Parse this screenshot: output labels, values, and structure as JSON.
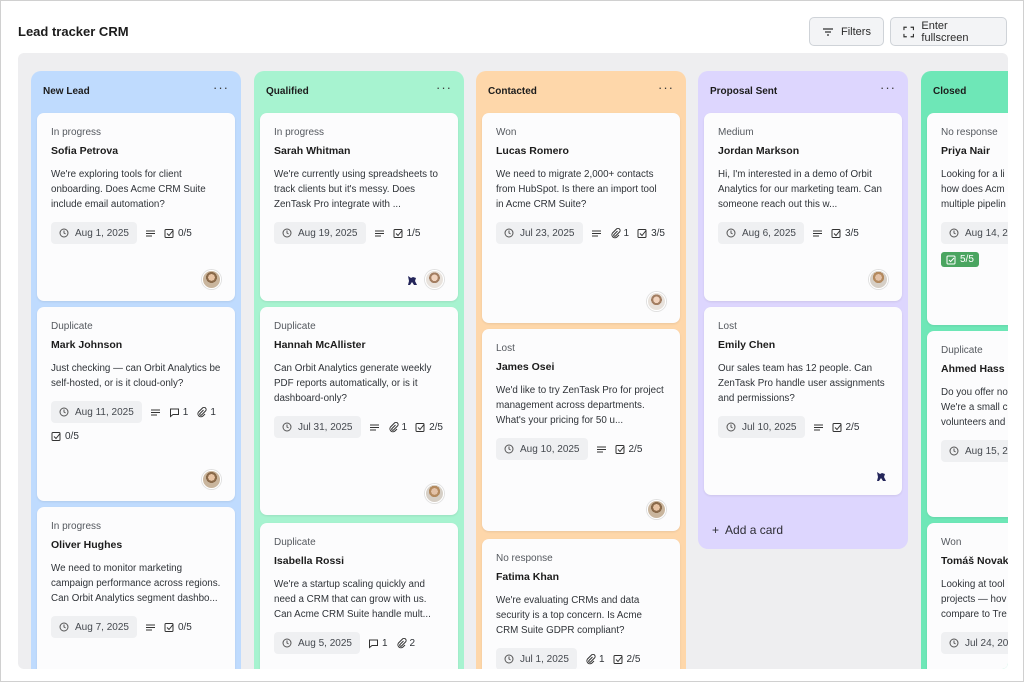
{
  "header": {
    "title": "Lead tracker CRM",
    "filters_label": "Filters",
    "fullscreen_label": "Enter fullscreen"
  },
  "colors": {
    "new_lead": "#bfdbfe",
    "qualified": "#a7f3d0",
    "contacted": "#fed7aa",
    "proposal_sent": "#ddd6fe",
    "closed": "#6ee7b7"
  },
  "columns": [
    {
      "title": "New Lead",
      "more": "···",
      "cards": [
        {
          "status": "In progress",
          "name": "Sofia Petrova",
          "desc": "We're exploring tools for client onboarding. Does Acme CRM Suite include email automation?",
          "date": "Aug 1, 2025",
          "checklist": "0/5"
        },
        {
          "status": "Duplicate",
          "name": "Mark Johnson",
          "desc": "Just checking — can Orbit Analytics be self-hosted, or is it cloud-only?",
          "date": "Aug 11, 2025",
          "comments": "1",
          "attachments": "1",
          "checklist": "0/5"
        },
        {
          "status": "In progress",
          "name": "Oliver Hughes",
          "desc": "We need to monitor marketing campaign performance across regions. Can Orbit Analytics segment dashbo...",
          "date": "Aug 7, 2025",
          "checklist": "0/5"
        }
      ]
    },
    {
      "title": "Qualified",
      "more": "···",
      "cards": [
        {
          "status": "In progress",
          "name": "Sarah Whitman",
          "desc": "We're currently using spreadsheets to track clients but it's messy. Does ZenTask Pro integrate with ...",
          "date": "Aug 19, 2025",
          "checklist": "1/5"
        },
        {
          "status": "Duplicate",
          "name": "Hannah McAllister",
          "desc": "Can Orbit Analytics generate weekly PDF reports automatically, or is it dashboard-only?",
          "date": "Jul 31, 2025",
          "attachments": "1",
          "checklist": "2/5"
        },
        {
          "status": "Duplicate",
          "name": "Isabella Rossi",
          "desc": "We're a startup scaling quickly and need a CRM that can grow with us. Can Acme CRM Suite handle mult...",
          "date": "Aug 5, 2025",
          "comments": "1",
          "attachments": "2"
        }
      ]
    },
    {
      "title": "Contacted",
      "more": "···",
      "cards": [
        {
          "status": "Won",
          "name": "Lucas Romero",
          "desc": "We need to migrate 2,000+ contacts from HubSpot. Is there an import tool in Acme CRM Suite?",
          "date": "Jul 23, 2025",
          "attachments": "1",
          "checklist": "3/5"
        },
        {
          "status": "Lost",
          "name": "James Osei",
          "desc": "We'd like to try ZenTask Pro for project management across departments. What's your pricing for 50 u...",
          "date": "Aug 10, 2025",
          "checklist": "2/5"
        },
        {
          "status": "No response",
          "name": "Fatima Khan",
          "desc": "We're evaluating CRMs and data security is a top concern. Is Acme CRM Suite GDPR compliant?",
          "date": "Jul 1, 2025",
          "attachments": "1",
          "checklist": "2/5"
        }
      ]
    },
    {
      "title": "Proposal Sent",
      "more": "···",
      "add_card": "Add a card",
      "cards": [
        {
          "status": "Medium",
          "name": "Jordan Markson",
          "desc": "Hi, I'm interested in a demo of Orbit Analytics for our marketing team. Can someone reach out this w...",
          "date": "Aug 6, 2025",
          "checklist": "3/5"
        },
        {
          "status": "Lost",
          "name": "Emily Chen",
          "desc": "Our sales team has 12 people. Can ZenTask Pro handle user assignments and permissions?",
          "date": "Jul 10, 2025",
          "checklist": "2/5"
        }
      ]
    },
    {
      "title": "Closed",
      "cards": [
        {
          "status": "No response",
          "name": "Priya Nair",
          "desc": "Looking for a li how does Acm multiple pipelin",
          "date": "Aug 14, 20",
          "checklist": "5/5"
        },
        {
          "status": "Duplicate",
          "name": "Ahmed Hass",
          "desc": "Do you offer no We're a small c volunteers and",
          "date": "Aug 15, 2"
        },
        {
          "status": "Won",
          "name": "Tomáš Novak",
          "desc": "Looking at tool projects — hov compare to Tre",
          "date": "Jul 24, 20"
        }
      ]
    }
  ]
}
